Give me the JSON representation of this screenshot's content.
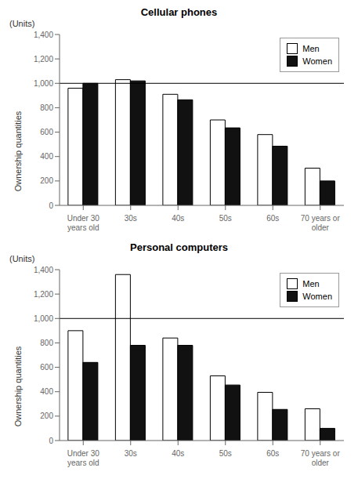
{
  "chart_data": [
    {
      "type": "bar",
      "title": "Cellular phones",
      "categories": [
        "Under 30\nyears old",
        "30s",
        "40s",
        "50s",
        "60s",
        "70 years or\nolder"
      ],
      "series": [
        {
          "name": "Men",
          "color": "#ffffff",
          "values": [
            960,
            1030,
            910,
            700,
            580,
            305
          ]
        },
        {
          "name": "Women",
          "color": "#111111",
          "values": [
            1000,
            1020,
            865,
            635,
            485,
            200
          ]
        }
      ],
      "hline": 1000,
      "ylabel": "Ownership quantities",
      "annotation": "(Units)",
      "ylim": [
        0,
        1400
      ],
      "yticks": [
        0,
        200,
        400,
        600,
        800,
        {
          "value": 1000,
          "label": "1,000"
        },
        {
          "value": 1200,
          "label": "1,200"
        },
        {
          "value": 1400,
          "label": "1,400"
        }
      ],
      "grid": false,
      "legend": "upper right"
    },
    {
      "type": "bar",
      "title": "Personal computers",
      "categories": [
        "Under 30\nyears old",
        "30s",
        "40s",
        "50s",
        "60s",
        "70 years or\nolder"
      ],
      "series": [
        {
          "name": "Men",
          "color": "#ffffff",
          "values": [
            900,
            1360,
            840,
            530,
            395,
            260
          ]
        },
        {
          "name": "Women",
          "color": "#111111",
          "values": [
            640,
            780,
            780,
            455,
            255,
            100
          ]
        }
      ],
      "hline": 1000,
      "ylabel": "Ownership quantities",
      "annotation": "(Units)",
      "ylim": [
        0,
        1400
      ],
      "yticks": [
        0,
        200,
        400,
        600,
        800,
        {
          "value": 1000,
          "label": "1,000"
        },
        {
          "value": 1200,
          "label": "1,200"
        },
        {
          "value": 1400,
          "label": "1,400"
        }
      ],
      "grid": false,
      "legend": "upper right"
    }
  ]
}
